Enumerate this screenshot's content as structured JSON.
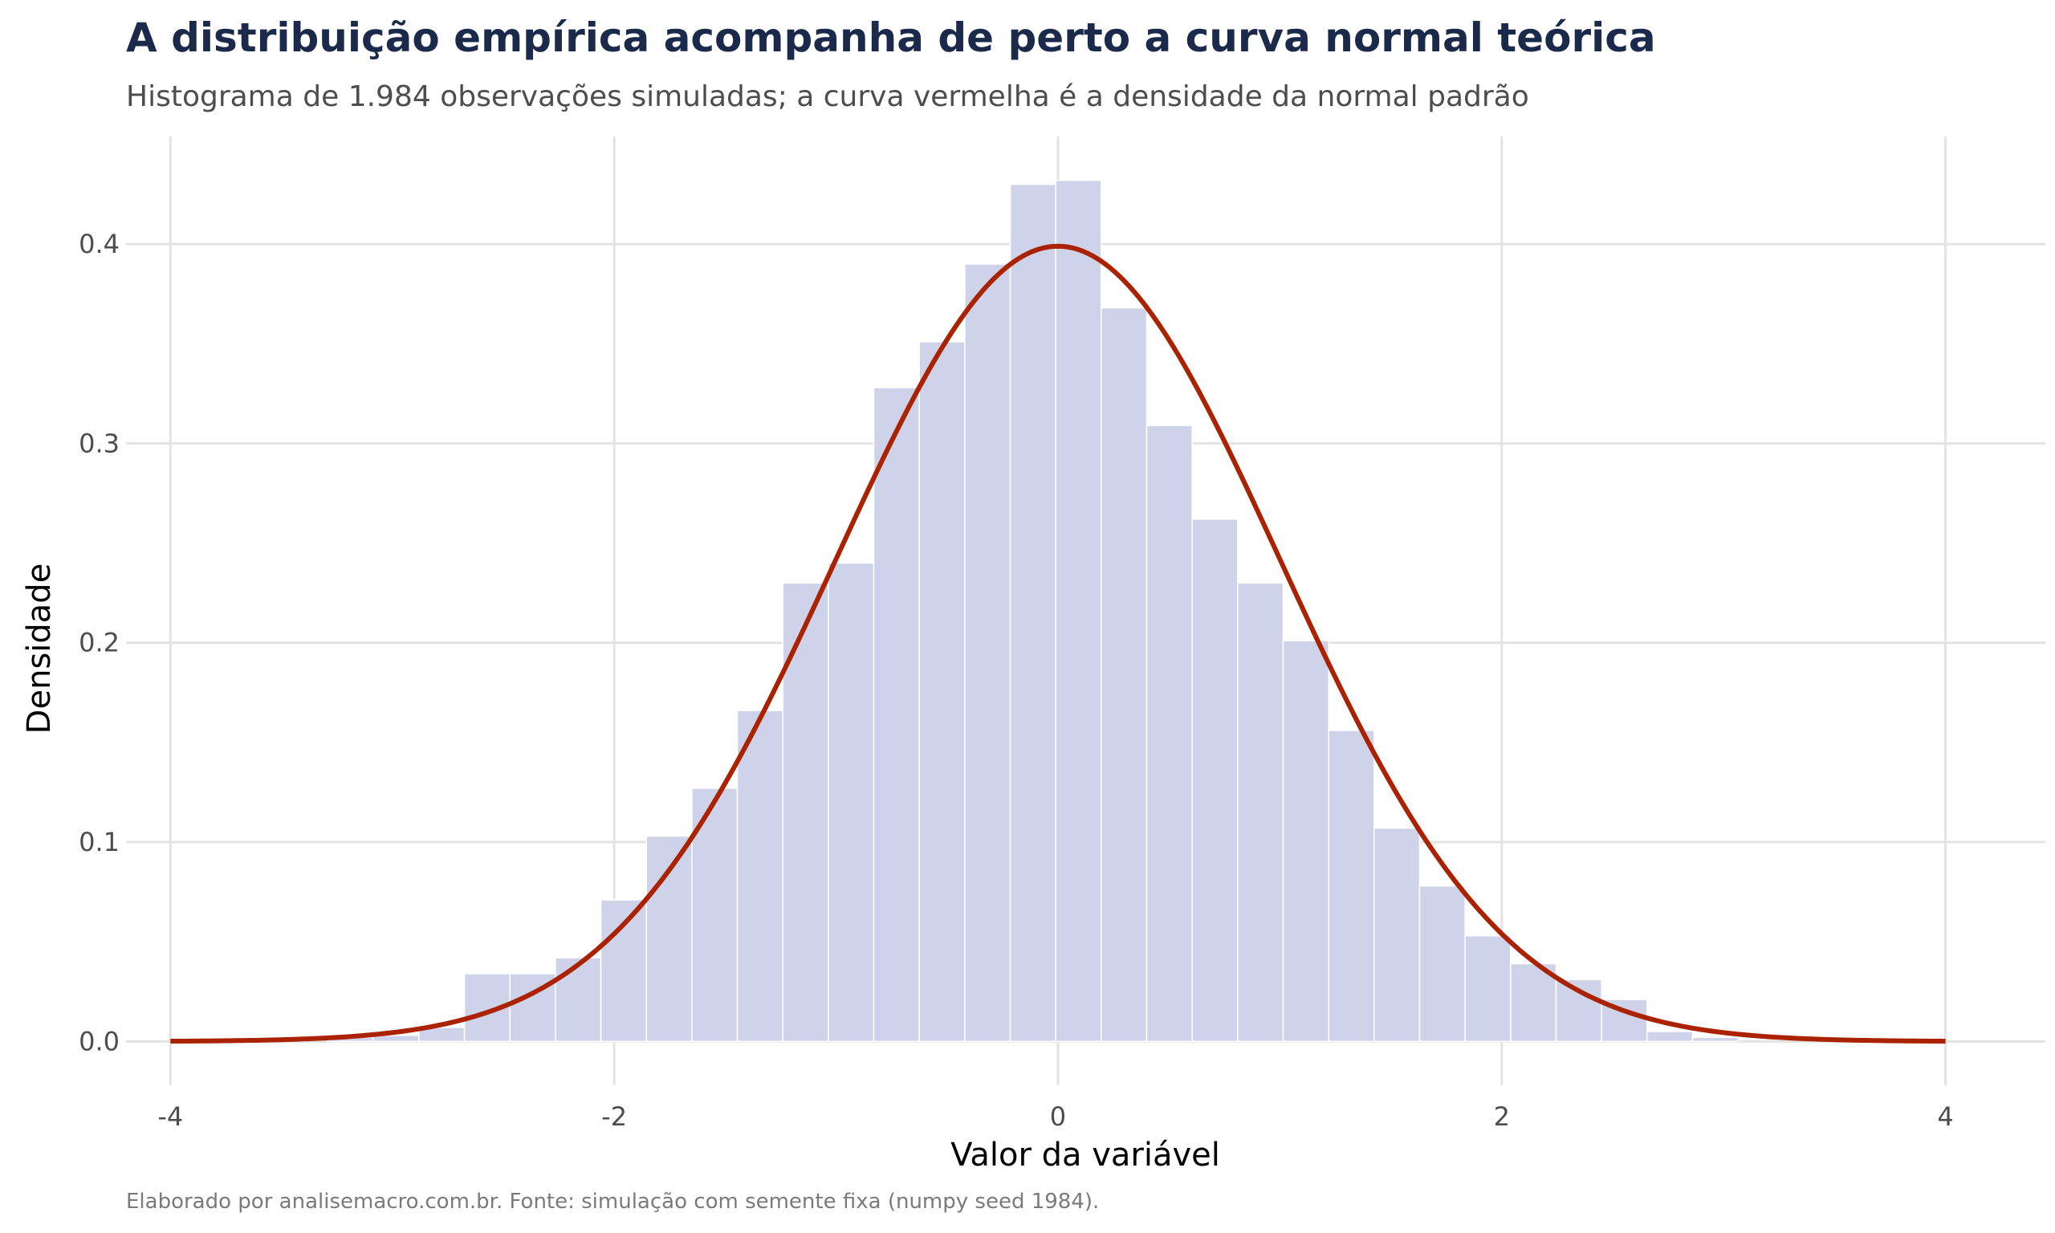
{
  "chart_data": {
    "type": "bar",
    "title": "A distribuição empírica acompanha de perto a curva normal teórica",
    "subtitle": "Histograma de 1.984 observações simuladas; a curva vermelha é a densidade da normal padrão",
    "xlabel": "Valor da variável",
    "ylabel": "Densidade",
    "caption": "Elaborado por analisemacro.com.br. Fonte: simulação com semente fixa (numpy seed 1984).",
    "xlim": [
      -4.2,
      4.45
    ],
    "ylim": [
      -0.022,
      0.454
    ],
    "x_ticks": [
      -4,
      -2,
      0,
      2,
      4
    ],
    "x_tick_labels": [
      "-4",
      "-2",
      "0",
      "2",
      "4"
    ],
    "y_ticks": [
      0.0,
      0.1,
      0.2,
      0.3,
      0.4
    ],
    "y_tick_labels": [
      "0.0",
      "0.1",
      "0.2",
      "0.3",
      "0.4"
    ],
    "grid": true,
    "colors": {
      "bars": "#cfd3e9",
      "bar_edge": "#ffffff",
      "curve": "#aa2200",
      "grid": "#e3e3e3"
    },
    "histogram": {
      "bin_edges": [
        -3.29,
        -3.085,
        -2.88,
        -2.675,
        -2.47,
        -2.265,
        -2.06,
        -1.855,
        -1.65,
        -1.445,
        -1.24,
        -1.035,
        -0.83,
        -0.625,
        -0.42,
        -0.215,
        -0.01,
        0.195,
        0.4,
        0.605,
        0.81,
        1.015,
        1.22,
        1.425,
        1.63,
        1.835,
        2.04,
        2.245,
        2.45,
        2.655,
        2.86,
        3.065
      ],
      "densities": [
        0.002,
        0.003,
        0.007,
        0.034,
        0.034,
        0.042,
        0.071,
        0.103,
        0.127,
        0.166,
        0.23,
        0.24,
        0.328,
        0.351,
        0.39,
        0.43,
        0.432,
        0.368,
        0.309,
        0.262,
        0.23,
        0.201,
        0.156,
        0.107,
        0.078,
        0.053,
        0.039,
        0.031,
        0.021,
        0.005,
        0.002
      ]
    },
    "series": [
      {
        "type": "line",
        "function": "normal_pdf",
        "mean": 0,
        "sd": 1,
        "x_range": [
          -4,
          4
        ]
      }
    ]
  }
}
